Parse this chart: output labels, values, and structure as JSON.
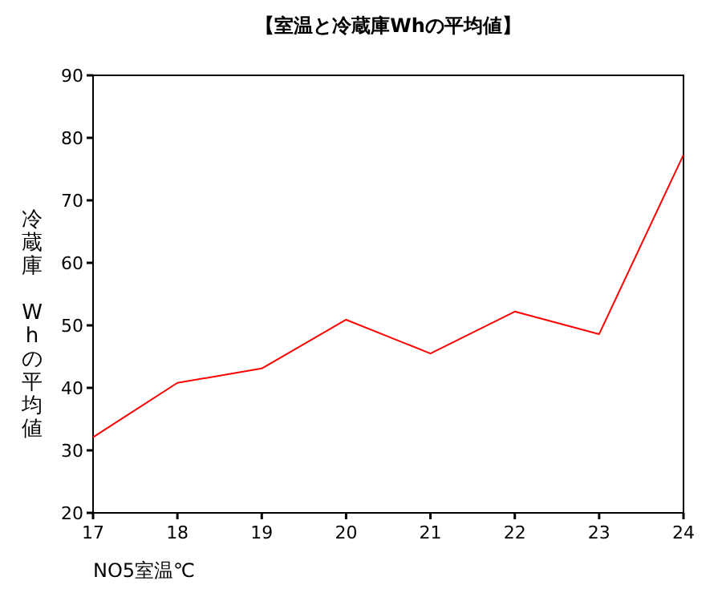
{
  "chart_data": {
    "type": "line",
    "title": "【室温と冷蔵庫Whの平均値】",
    "xlabel": "NO5室温℃",
    "ylabel": "冷蔵庫 Whの平均値",
    "x": [
      17,
      18,
      19,
      20,
      21,
      22,
      23,
      24
    ],
    "series": [
      {
        "color": "#ff0000",
        "values": [
          32.1,
          40.8,
          43.1,
          50.9,
          45.5,
          52.2,
          48.6,
          77.3
        ]
      }
    ],
    "xlim": [
      17,
      24
    ],
    "xticks": [
      17,
      18,
      19,
      20,
      21,
      22,
      23,
      24
    ],
    "ylim": [
      20,
      90
    ],
    "yticks": [
      20,
      30,
      40,
      50,
      60,
      70,
      80,
      90
    ],
    "grid": false,
    "marker": "none",
    "line_style": "solid"
  }
}
